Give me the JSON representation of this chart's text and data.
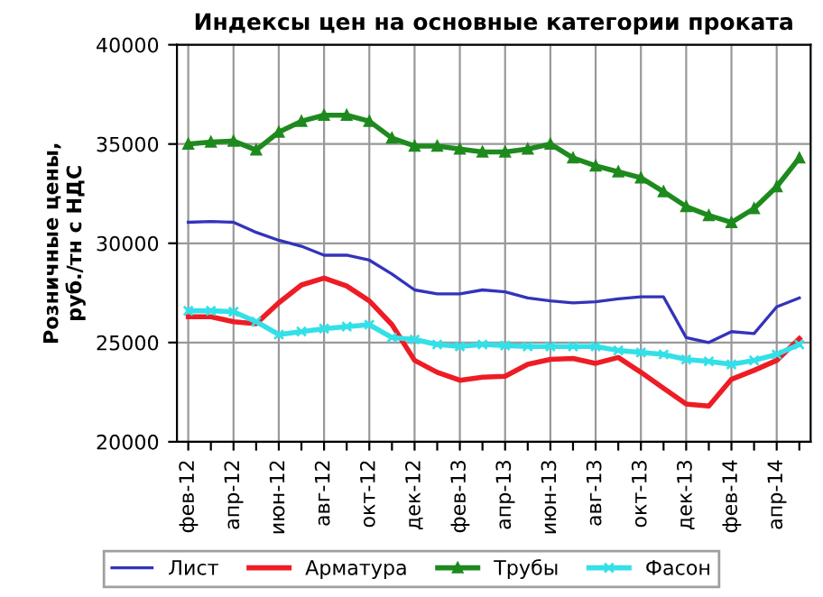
{
  "chart_data": {
    "type": "line",
    "title": "Индексы цен на основные категории проката",
    "ylabel": "Розничные цены,\nруб./тн с НДС",
    "categories": [
      "фев-12",
      null,
      "апр-12",
      null,
      "июн-12",
      null,
      "авг-12",
      null,
      "окт-12",
      null,
      "дек-12",
      null,
      "фев-13",
      null,
      "апр-13",
      null,
      "июн-13",
      null,
      "авг-13",
      null,
      "окт-13",
      null,
      "дек-13",
      null,
      "фев-14",
      null,
      "апр-14",
      null
    ],
    "series": [
      {
        "name": "Лист",
        "color": "#3333bb",
        "marker": "none",
        "values": [
          31060,
          31100,
          31060,
          30550,
          30150,
          29850,
          29400,
          29400,
          29150,
          28450,
          27650,
          27450,
          27450,
          27650,
          27550,
          27250,
          27100,
          27000,
          27050,
          27200,
          27300,
          27300,
          25250,
          25000,
          25550,
          25450,
          26800,
          27250
        ]
      },
      {
        "name": "Арматура",
        "color": "#ee1c24",
        "marker": "none",
        "values": [
          26300,
          26300,
          26050,
          25950,
          27000,
          27900,
          28250,
          27850,
          27100,
          25900,
          24100,
          23500,
          23100,
          23250,
          23300,
          23900,
          24150,
          24200,
          23950,
          24250,
          23500,
          22700,
          21900,
          21800,
          23150,
          23600,
          24100,
          25200
        ]
      },
      {
        "name": "Трубы",
        "color": "#1e8a1e",
        "marker": "triangle",
        "values": [
          35000,
          35100,
          35150,
          34700,
          35600,
          36150,
          36450,
          36450,
          36150,
          35300,
          34900,
          34900,
          34750,
          34600,
          34600,
          34750,
          35000,
          34300,
          33900,
          33600,
          33300,
          32600,
          31850,
          31400,
          31050,
          31750,
          32850,
          34300
        ]
      },
      {
        "name": "Фасон",
        "color": "#33e0e8",
        "marker": "cross",
        "values": [
          26600,
          26600,
          26550,
          26050,
          25400,
          25550,
          25700,
          25800,
          25900,
          25250,
          25150,
          24900,
          24800,
          24900,
          24850,
          24800,
          24800,
          24800,
          24800,
          24600,
          24500,
          24400,
          24150,
          24050,
          23900,
          24100,
          24400,
          24900
        ]
      }
    ],
    "ylim": [
      20000,
      40000
    ],
    "yticks": [
      20000,
      25000,
      30000,
      35000,
      40000
    ],
    "grid": true,
    "legend": "bottom",
    "line_style": "solid"
  }
}
